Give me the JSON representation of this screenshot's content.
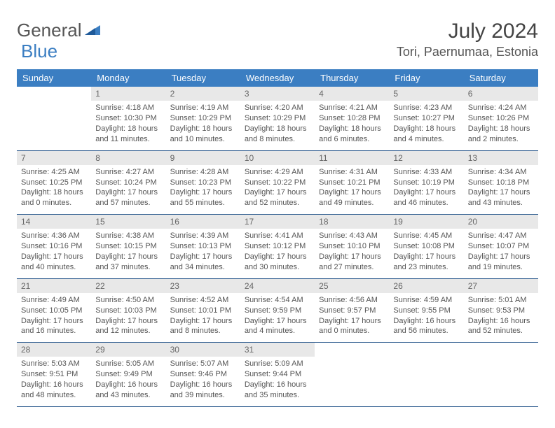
{
  "logo": {
    "text1": "General",
    "text2": "Blue"
  },
  "title": "July 2024",
  "location": "Tori, Paernumaa, Estonia",
  "weekdays": [
    "Sunday",
    "Monday",
    "Tuesday",
    "Wednesday",
    "Thursday",
    "Friday",
    "Saturday"
  ],
  "colors": {
    "accent": "#3b7ec2",
    "headerDark": "#2c5a8e",
    "dayBg": "#e8e8e8"
  },
  "cells": [
    {
      "day": "",
      "sunrise": "",
      "sunset": "",
      "daylight1": "",
      "daylight2": ""
    },
    {
      "day": "1",
      "sunrise": "Sunrise: 4:18 AM",
      "sunset": "Sunset: 10:30 PM",
      "daylight1": "Daylight: 18 hours",
      "daylight2": "and 11 minutes."
    },
    {
      "day": "2",
      "sunrise": "Sunrise: 4:19 AM",
      "sunset": "Sunset: 10:29 PM",
      "daylight1": "Daylight: 18 hours",
      "daylight2": "and 10 minutes."
    },
    {
      "day": "3",
      "sunrise": "Sunrise: 4:20 AM",
      "sunset": "Sunset: 10:29 PM",
      "daylight1": "Daylight: 18 hours",
      "daylight2": "and 8 minutes."
    },
    {
      "day": "4",
      "sunrise": "Sunrise: 4:21 AM",
      "sunset": "Sunset: 10:28 PM",
      "daylight1": "Daylight: 18 hours",
      "daylight2": "and 6 minutes."
    },
    {
      "day": "5",
      "sunrise": "Sunrise: 4:23 AM",
      "sunset": "Sunset: 10:27 PM",
      "daylight1": "Daylight: 18 hours",
      "daylight2": "and 4 minutes."
    },
    {
      "day": "6",
      "sunrise": "Sunrise: 4:24 AM",
      "sunset": "Sunset: 10:26 PM",
      "daylight1": "Daylight: 18 hours",
      "daylight2": "and 2 minutes."
    },
    {
      "day": "7",
      "sunrise": "Sunrise: 4:25 AM",
      "sunset": "Sunset: 10:25 PM",
      "daylight1": "Daylight: 18 hours",
      "daylight2": "and 0 minutes."
    },
    {
      "day": "8",
      "sunrise": "Sunrise: 4:27 AM",
      "sunset": "Sunset: 10:24 PM",
      "daylight1": "Daylight: 17 hours",
      "daylight2": "and 57 minutes."
    },
    {
      "day": "9",
      "sunrise": "Sunrise: 4:28 AM",
      "sunset": "Sunset: 10:23 PM",
      "daylight1": "Daylight: 17 hours",
      "daylight2": "and 55 minutes."
    },
    {
      "day": "10",
      "sunrise": "Sunrise: 4:29 AM",
      "sunset": "Sunset: 10:22 PM",
      "daylight1": "Daylight: 17 hours",
      "daylight2": "and 52 minutes."
    },
    {
      "day": "11",
      "sunrise": "Sunrise: 4:31 AM",
      "sunset": "Sunset: 10:21 PM",
      "daylight1": "Daylight: 17 hours",
      "daylight2": "and 49 minutes."
    },
    {
      "day": "12",
      "sunrise": "Sunrise: 4:33 AM",
      "sunset": "Sunset: 10:19 PM",
      "daylight1": "Daylight: 17 hours",
      "daylight2": "and 46 minutes."
    },
    {
      "day": "13",
      "sunrise": "Sunrise: 4:34 AM",
      "sunset": "Sunset: 10:18 PM",
      "daylight1": "Daylight: 17 hours",
      "daylight2": "and 43 minutes."
    },
    {
      "day": "14",
      "sunrise": "Sunrise: 4:36 AM",
      "sunset": "Sunset: 10:16 PM",
      "daylight1": "Daylight: 17 hours",
      "daylight2": "and 40 minutes."
    },
    {
      "day": "15",
      "sunrise": "Sunrise: 4:38 AM",
      "sunset": "Sunset: 10:15 PM",
      "daylight1": "Daylight: 17 hours",
      "daylight2": "and 37 minutes."
    },
    {
      "day": "16",
      "sunrise": "Sunrise: 4:39 AM",
      "sunset": "Sunset: 10:13 PM",
      "daylight1": "Daylight: 17 hours",
      "daylight2": "and 34 minutes."
    },
    {
      "day": "17",
      "sunrise": "Sunrise: 4:41 AM",
      "sunset": "Sunset: 10:12 PM",
      "daylight1": "Daylight: 17 hours",
      "daylight2": "and 30 minutes."
    },
    {
      "day": "18",
      "sunrise": "Sunrise: 4:43 AM",
      "sunset": "Sunset: 10:10 PM",
      "daylight1": "Daylight: 17 hours",
      "daylight2": "and 27 minutes."
    },
    {
      "day": "19",
      "sunrise": "Sunrise: 4:45 AM",
      "sunset": "Sunset: 10:08 PM",
      "daylight1": "Daylight: 17 hours",
      "daylight2": "and 23 minutes."
    },
    {
      "day": "20",
      "sunrise": "Sunrise: 4:47 AM",
      "sunset": "Sunset: 10:07 PM",
      "daylight1": "Daylight: 17 hours",
      "daylight2": "and 19 minutes."
    },
    {
      "day": "21",
      "sunrise": "Sunrise: 4:49 AM",
      "sunset": "Sunset: 10:05 PM",
      "daylight1": "Daylight: 17 hours",
      "daylight2": "and 16 minutes."
    },
    {
      "day": "22",
      "sunrise": "Sunrise: 4:50 AM",
      "sunset": "Sunset: 10:03 PM",
      "daylight1": "Daylight: 17 hours",
      "daylight2": "and 12 minutes."
    },
    {
      "day": "23",
      "sunrise": "Sunrise: 4:52 AM",
      "sunset": "Sunset: 10:01 PM",
      "daylight1": "Daylight: 17 hours",
      "daylight2": "and 8 minutes."
    },
    {
      "day": "24",
      "sunrise": "Sunrise: 4:54 AM",
      "sunset": "Sunset: 9:59 PM",
      "daylight1": "Daylight: 17 hours",
      "daylight2": "and 4 minutes."
    },
    {
      "day": "25",
      "sunrise": "Sunrise: 4:56 AM",
      "sunset": "Sunset: 9:57 PM",
      "daylight1": "Daylight: 17 hours",
      "daylight2": "and 0 minutes."
    },
    {
      "day": "26",
      "sunrise": "Sunrise: 4:59 AM",
      "sunset": "Sunset: 9:55 PM",
      "daylight1": "Daylight: 16 hours",
      "daylight2": "and 56 minutes."
    },
    {
      "day": "27",
      "sunrise": "Sunrise: 5:01 AM",
      "sunset": "Sunset: 9:53 PM",
      "daylight1": "Daylight: 16 hours",
      "daylight2": "and 52 minutes."
    },
    {
      "day": "28",
      "sunrise": "Sunrise: 5:03 AM",
      "sunset": "Sunset: 9:51 PM",
      "daylight1": "Daylight: 16 hours",
      "daylight2": "and 48 minutes."
    },
    {
      "day": "29",
      "sunrise": "Sunrise: 5:05 AM",
      "sunset": "Sunset: 9:49 PM",
      "daylight1": "Daylight: 16 hours",
      "daylight2": "and 43 minutes."
    },
    {
      "day": "30",
      "sunrise": "Sunrise: 5:07 AM",
      "sunset": "Sunset: 9:46 PM",
      "daylight1": "Daylight: 16 hours",
      "daylight2": "and 39 minutes."
    },
    {
      "day": "31",
      "sunrise": "Sunrise: 5:09 AM",
      "sunset": "Sunset: 9:44 PM",
      "daylight1": "Daylight: 16 hours",
      "daylight2": "and 35 minutes."
    },
    {
      "day": "",
      "sunrise": "",
      "sunset": "",
      "daylight1": "",
      "daylight2": ""
    },
    {
      "day": "",
      "sunrise": "",
      "sunset": "",
      "daylight1": "",
      "daylight2": ""
    },
    {
      "day": "",
      "sunrise": "",
      "sunset": "",
      "daylight1": "",
      "daylight2": ""
    }
  ]
}
